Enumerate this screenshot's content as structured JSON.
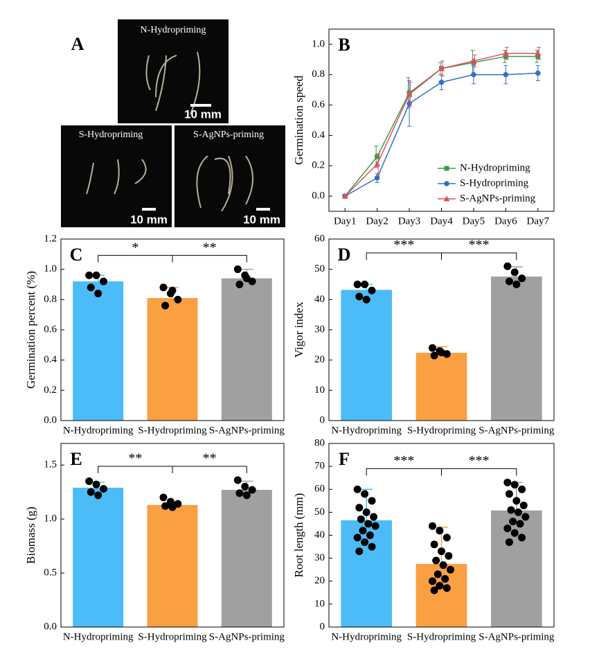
{
  "photo_panel": {
    "label": "A",
    "images": [
      {
        "caption": "N-Hydropriming",
        "scale_bar": "10 mm"
      },
      {
        "caption": "S-Hydropriming",
        "scale_bar": "10 mm"
      },
      {
        "caption": "S-AgNPs-priming",
        "scale_bar": "10 mm"
      }
    ]
  },
  "chart_data": [
    {
      "type": "line",
      "label": "B",
      "ylabel": "Germination speed",
      "categories": [
        "Day1",
        "Day2",
        "Day3",
        "Day4",
        "Day5",
        "Day6",
        "Day7"
      ],
      "series": [
        {
          "name": "N-Hydropriming",
          "color": "#3c9a4c",
          "marker": "square",
          "values": [
            0,
            0.26,
            0.68,
            0.84,
            0.88,
            0.92,
            0.92
          ],
          "errors": [
            0,
            0.07,
            0.1,
            0.04,
            0.08,
            0.04,
            0.04
          ]
        },
        {
          "name": "S-Hydropriming",
          "color": "#2f70c8",
          "marker": "circle",
          "values": [
            0,
            0.12,
            0.61,
            0.75,
            0.8,
            0.8,
            0.81
          ],
          "errors": [
            0,
            0.03,
            0.15,
            0.05,
            0.06,
            0.06,
            0.05
          ]
        },
        {
          "name": "S-AgNPs-priming",
          "color": "#e0505a",
          "marker": "triangle",
          "values": [
            0,
            0.21,
            0.67,
            0.84,
            0.89,
            0.94,
            0.94
          ],
          "errors": [
            0,
            0.07,
            0.08,
            0.05,
            0.04,
            0.04,
            0.04
          ]
        }
      ],
      "ylim": [
        -0.1,
        1.1
      ],
      "yticks": [
        {
          "value": 0,
          "label": "0.0"
        },
        {
          "value": 0.2,
          "label": "0.2"
        },
        {
          "value": 0.4,
          "label": "0.4"
        },
        {
          "value": 0.6,
          "label": "0.6"
        },
        {
          "value": 0.8,
          "label": "0.8"
        },
        {
          "value": 1,
          "label": "1.0"
        }
      ],
      "legend": "lower right"
    },
    {
      "type": "bar",
      "label": "C",
      "ylabel": "Germination percent (%)",
      "categories": [
        "N-Hydropriming",
        "S-Hydropriming",
        "S-AgNPs-priming"
      ],
      "colors": [
        "#4cbcf8",
        "#fa9f42",
        "#a0a0a0"
      ],
      "values": [
        0.92,
        0.81,
        0.94
      ],
      "errors": [
        0.04,
        0.07,
        0.06
      ],
      "points": [
        [
          0.96,
          0.96,
          0.92,
          0.88,
          0.84
        ],
        [
          0.88,
          0.84,
          0.8,
          0.76,
          0.86
        ],
        [
          1.0,
          0.96,
          0.92,
          0.9,
          0.94
        ]
      ],
      "brackets": [
        {
          "from": 0,
          "to": 1,
          "label": "*"
        },
        {
          "from": 1,
          "to": 2,
          "label": "**"
        }
      ],
      "ylim": [
        0,
        1.2
      ],
      "yticks": [
        {
          "value": 0,
          "label": "0.0"
        },
        {
          "value": 0.2,
          "label": "0.2"
        },
        {
          "value": 0.4,
          "label": "0.4"
        },
        {
          "value": 0.6,
          "label": "0.6"
        },
        {
          "value": 0.8,
          "label": "0.8"
        },
        {
          "value": 1,
          "label": "1.0"
        },
        {
          "value": 1.2,
          "label": "1.2"
        }
      ]
    },
    {
      "type": "bar",
      "label": "D",
      "ylabel": "Vigor index",
      "categories": [
        "N-Hydropriming",
        "S-Hydropriming",
        "S-AgNPs-priming"
      ],
      "colors": [
        "#4cbcf8",
        "#fa9f42",
        "#a0a0a0"
      ],
      "values": [
        43.2,
        22.4,
        47.6
      ],
      "errors": [
        1.8,
        2,
        3.2
      ],
      "points": [
        [
          45,
          45,
          43,
          41,
          40
        ],
        [
          24,
          23,
          22,
          21.5,
          22.5
        ],
        [
          51,
          49,
          47,
          46,
          45
        ]
      ],
      "brackets": [
        {
          "from": 0,
          "to": 1,
          "label": "***"
        },
        {
          "from": 1,
          "to": 2,
          "label": "***"
        }
      ],
      "ylim": [
        0,
        60
      ],
      "yticks": [
        0,
        10,
        20,
        30,
        40,
        50,
        60
      ]
    },
    {
      "type": "bar",
      "label": "E",
      "ylabel": "Biomass (g)",
      "categories": [
        "N-Hydropriming",
        "S-Hydropriming",
        "S-AgNPs-priming"
      ],
      "colors": [
        "#4cbcf8",
        "#fa9f42",
        "#a0a0a0"
      ],
      "values": [
        1.29,
        1.13,
        1.27
      ],
      "errors": [
        0.05,
        0.02,
        0.08
      ],
      "points": [
        [
          1.35,
          1.32,
          1.28,
          1.25,
          1.22
        ],
        [
          1.2,
          1.16,
          1.14,
          1.12,
          1.11
        ],
        [
          1.36,
          1.3,
          1.27,
          1.24,
          1.22
        ]
      ],
      "brackets": [
        {
          "from": 0,
          "to": 1,
          "label": "**"
        },
        {
          "from": 1,
          "to": 2,
          "label": "**"
        }
      ],
      "ylim": [
        0,
        1.7
      ],
      "yticks": [
        {
          "value": 0,
          "label": "0.0"
        },
        {
          "value": 0.5,
          "label": "0.5"
        },
        {
          "value": 1,
          "label": "1.0"
        },
        {
          "value": 1.5,
          "label": "1.5"
        }
      ]
    },
    {
      "type": "bar",
      "label": "F",
      "ylabel": "Root length (mm)",
      "categories": [
        "N-Hydropriming",
        "S-Hydropriming",
        "S-AgNPs-priming"
      ],
      "colors": [
        "#4cbcf8",
        "#fa9f42",
        "#a0a0a0"
      ],
      "values": [
        46.5,
        27.5,
        50.8
      ],
      "errors": [
        13.5,
        16,
        12.2
      ],
      "points": [
        [
          60,
          58,
          55,
          52,
          50,
          48,
          47,
          45,
          44,
          42,
          40,
          39,
          37,
          35,
          33
        ],
        [
          44,
          42,
          39,
          36,
          33,
          31,
          29,
          27,
          25,
          23,
          21,
          20,
          18,
          17,
          16
        ],
        [
          63,
          62,
          60,
          58,
          55,
          53,
          51,
          50,
          48,
          46,
          45,
          43,
          41,
          39,
          37
        ]
      ],
      "brackets": [
        {
          "from": 0,
          "to": 1,
          "label": "***"
        },
        {
          "from": 1,
          "to": 2,
          "label": "***"
        }
      ],
      "ylim": [
        0,
        80
      ],
      "yticks": [
        0,
        10,
        20,
        30,
        40,
        50,
        60,
        70,
        80
      ]
    }
  ]
}
